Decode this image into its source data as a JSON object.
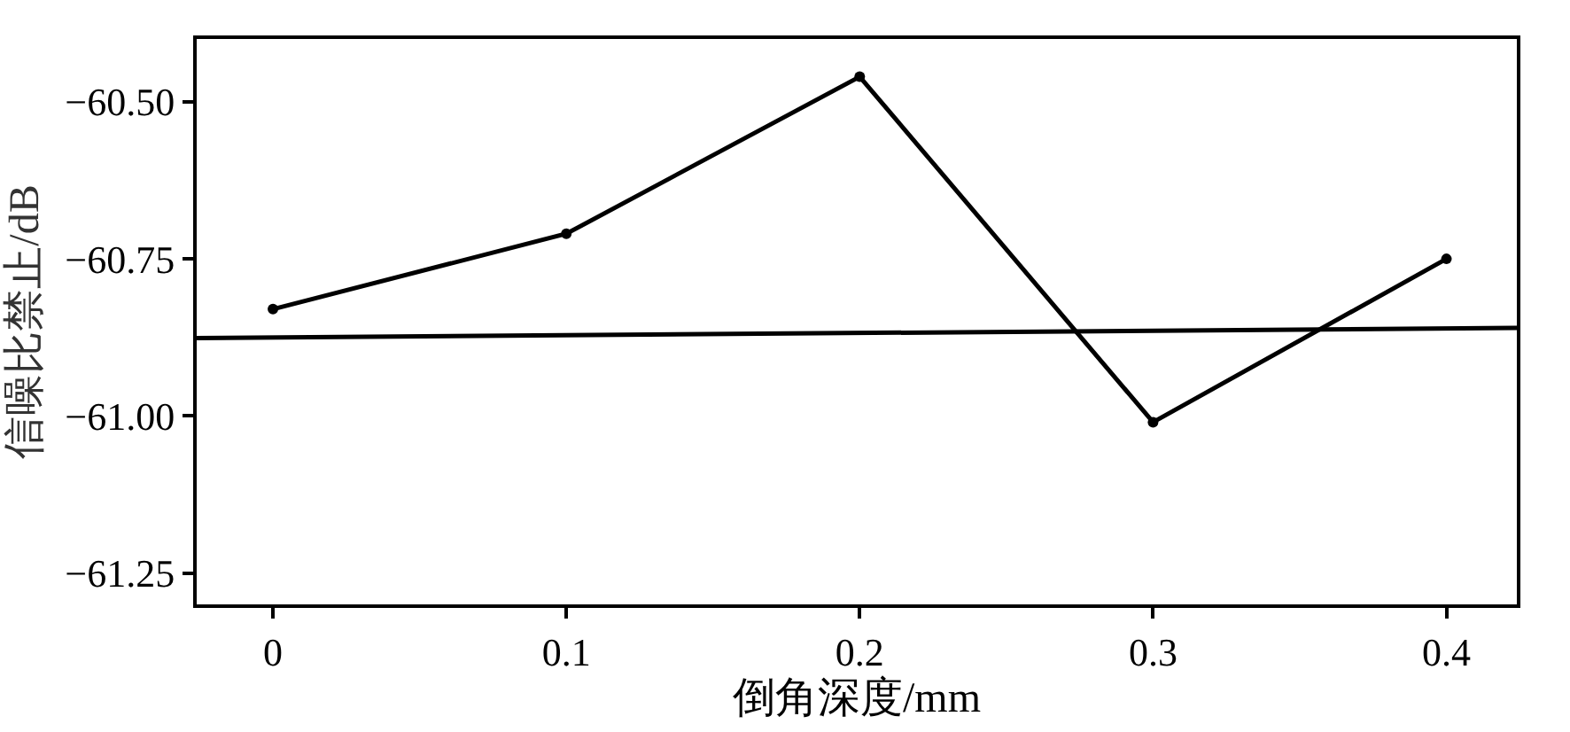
{
  "chart_data": {
    "type": "line",
    "xlabel": "倒角深度/mm",
    "ylabel": "信噪比禁止/dB",
    "x": [
      0,
      0.1,
      0.2,
      0.3,
      0.4
    ],
    "series": [
      {
        "color": "#000000",
        "values": [
          -60.83,
          -60.71,
          -60.46,
          -61.01,
          -60.75
        ],
        "marker": "circle"
      },
      {
        "color": "#000000",
        "x": [
          -0.026,
          0.424
        ],
        "values": [
          -60.876,
          -60.86
        ],
        "marker": "none"
      }
    ],
    "xlim": [
      -0.026,
      0.424
    ],
    "xticks": [
      {
        "value": 0,
        "label": "0"
      },
      0.1,
      0.2,
      0.3,
      0.4
    ],
    "ylim": [
      -61.3,
      -60.4
    ],
    "yticks": [
      {
        "value": -60.5,
        "label": "−60.50"
      },
      {
        "value": -60.75,
        "label": "−60.75"
      },
      {
        "value": -61.0,
        "label": "−61.00"
      },
      {
        "value": -61.25,
        "label": "−61.25"
      }
    ],
    "line_style": "solid"
  }
}
